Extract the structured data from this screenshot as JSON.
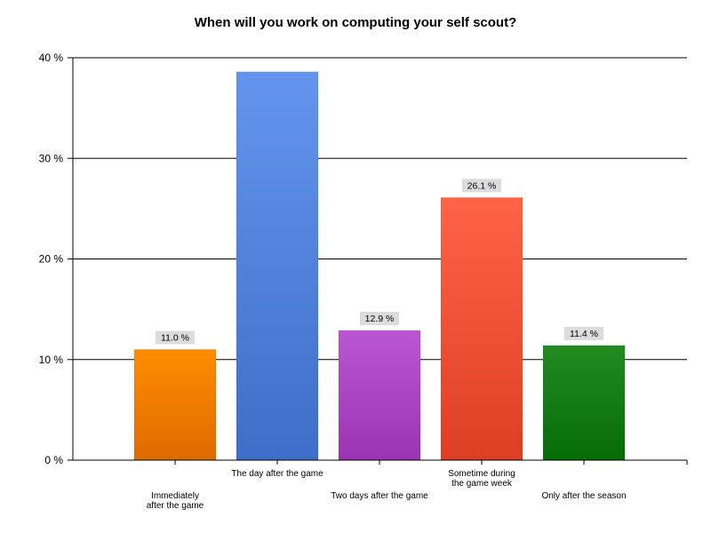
{
  "chart_data": {
    "type": "bar",
    "title": "When will you work on computing your self scout?",
    "xlabel": "",
    "ylabel": "",
    "ylim": [
      0,
      40
    ],
    "yticks": [
      0,
      10,
      20,
      30,
      40
    ],
    "ytick_labels": [
      "0 %",
      "10 %",
      "20 %",
      "30 %",
      "40 %"
    ],
    "grid": true,
    "legend": "none",
    "categories": [
      "Immediately after the game",
      "The day after the game",
      "Two days after the game",
      "Sometime during the game week",
      "Only after the season"
    ],
    "category_lines": [
      [
        "Immediately",
        "after the game"
      ],
      [
        "The day after the game"
      ],
      [
        "Two days after the game"
      ],
      [
        "Sometime during",
        "the game week"
      ],
      [
        "Only after the season"
      ]
    ],
    "values": [
      11.0,
      38.6,
      12.9,
      26.1,
      11.4
    ],
    "data_labels": [
      "11.0 %",
      null,
      "12.9 %",
      "26.1 %",
      "11.4 %"
    ],
    "colors": [
      [
        "#ff8c00",
        "#de6b00"
      ],
      [
        "#6495ed",
        "#3e6ec8"
      ],
      [
        "#ba55d3",
        "#9a34b3"
      ],
      [
        "#ff6347",
        "#dc3f23"
      ],
      [
        "#228b22",
        "#066c06"
      ]
    ]
  }
}
